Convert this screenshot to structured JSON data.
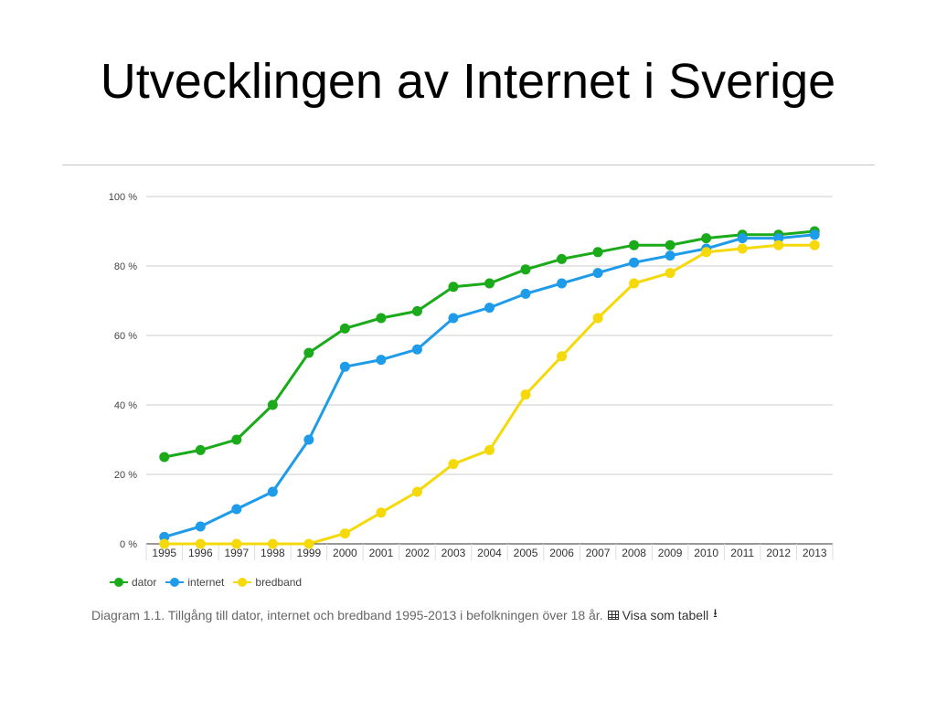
{
  "slide": {
    "title": "Utvecklingen av Internet i Sverige"
  },
  "caption": {
    "text": "Diagram 1.1. Tillgång till dator, internet och bredband 1995-2013 i befolkningen över 18 år.",
    "table_link": "Visa som tabell",
    "table_icon": "table-icon",
    "download_icon": "download-icon"
  },
  "chart_data": {
    "type": "line",
    "title": "",
    "xlabel": "",
    "ylabel": "",
    "ylim": [
      0,
      100
    ],
    "yticks": [
      0,
      20,
      40,
      60,
      80,
      100
    ],
    "ytick_labels": [
      "0 %",
      "20 %",
      "40 %",
      "60 %",
      "80 %",
      "100 %"
    ],
    "grid": true,
    "legend_position": "bottom-left",
    "x": [
      "1995",
      "1996",
      "1997",
      "1998",
      "1999",
      "2000",
      "2001",
      "2002",
      "2003",
      "2004",
      "2005",
      "2006",
      "2007",
      "2008",
      "2009",
      "2010",
      "2011",
      "2012",
      "2013"
    ],
    "series": [
      {
        "name": "dator",
        "color": "#1aaa1a",
        "values": [
          25,
          27,
          30,
          40,
          55,
          62,
          65,
          67,
          74,
          75,
          79,
          82,
          84,
          86,
          86,
          88,
          89,
          89,
          90
        ]
      },
      {
        "name": "internet",
        "color": "#1e9be9",
        "values": [
          2,
          5,
          10,
          15,
          30,
          51,
          53,
          56,
          65,
          68,
          72,
          75,
          78,
          81,
          83,
          85,
          88,
          88,
          89
        ]
      },
      {
        "name": "bredband",
        "color": "#f5d90a",
        "values": [
          0,
          0,
          0,
          0,
          0,
          3,
          9,
          15,
          23,
          27,
          43,
          54,
          65,
          75,
          78,
          84,
          85,
          86,
          86
        ]
      }
    ]
  }
}
